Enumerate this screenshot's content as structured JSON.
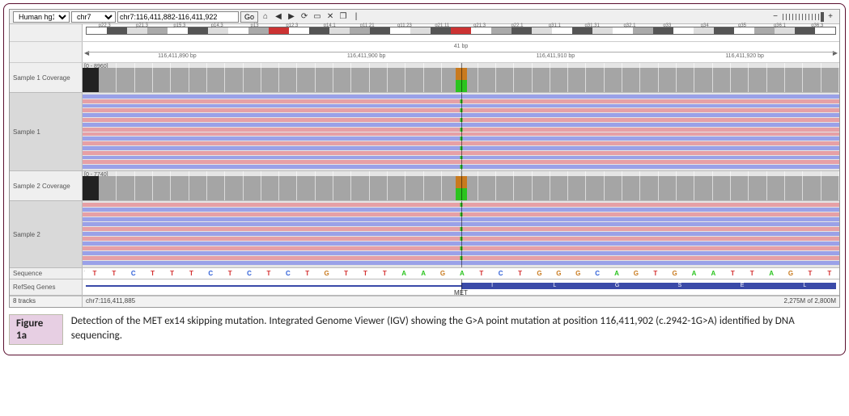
{
  "toolbar": {
    "genome": "Human hg19",
    "chrom": "chr7",
    "locus": "chr7:116,411,882-116,411,922",
    "go_label": "Go"
  },
  "icons": {
    "home": "⌂",
    "back": "◀",
    "fwd": "▶",
    "refresh": "⟳",
    "region": "▭",
    "close": "✕",
    "popout": "❐",
    "sep": "|",
    "zoom_minus": "−",
    "zoom_plus": "+"
  },
  "ideogram": {
    "labels": [
      "p22.3",
      "p21.3",
      "p15.3",
      "p14.3",
      "p13",
      "p12.3",
      "p14.1",
      "q11.21",
      "q11.23",
      "q21.11",
      "q21.3",
      "q22.1",
      "q31.1",
      "q31.31",
      "q32.1",
      "q33",
      "q34",
      "q35",
      "q36.1",
      "q36.3"
    ],
    "bands": [
      "w",
      "d",
      "l",
      "m",
      "w",
      "d",
      "l",
      "w",
      "m",
      "c",
      "w",
      "d",
      "l",
      "m",
      "d",
      "w",
      "l",
      "d",
      "c",
      "w",
      "m",
      "d",
      "l",
      "w",
      "d",
      "l",
      "w",
      "m",
      "d",
      "w",
      "l",
      "d",
      "w",
      "m",
      "l",
      "d",
      "w"
    ]
  },
  "ruler": {
    "span": "41 bp",
    "ticks": [
      "116,411,890 bp",
      "116,411,900 bp",
      "116,411,910 bp",
      "116,411,920 bp"
    ]
  },
  "tracks": {
    "sample1_cov": {
      "label": "Sample 1 Coverage",
      "range": "[0 - 8960]"
    },
    "sample1": {
      "label": "Sample 1"
    },
    "sample2_cov": {
      "label": "Sample 2 Coverage",
      "range": "[0 - 7740]"
    },
    "sample2": {
      "label": "Sample 2"
    },
    "sequence_label": "Sequence",
    "refseq_label": "RefSeq Genes"
  },
  "reads": {
    "s1": [
      "r",
      "f",
      "r",
      "f",
      "r",
      "f",
      "r",
      "f",
      "f",
      "r",
      "f",
      "r",
      "f",
      "r",
      "f",
      "r"
    ],
    "s2": [
      "f",
      "r",
      "f",
      "r",
      "r",
      "f",
      "r",
      "f",
      "r",
      "f",
      "r",
      "f",
      "r"
    ],
    "s1_snp_idx": [
      1,
      3,
      5,
      7,
      9,
      11,
      13,
      15
    ],
    "s2_snp_idx": [
      0,
      2,
      5,
      7,
      9,
      11
    ]
  },
  "sequence": [
    "T",
    "T",
    "C",
    "T",
    "T",
    "T",
    "C",
    "T",
    "C",
    "T",
    "C",
    "T",
    "G",
    "T",
    "T",
    "T",
    "A",
    "A",
    "G",
    "A",
    "T",
    "C",
    "T",
    "G",
    "G",
    "G",
    "C",
    "A",
    "G",
    "T",
    "G",
    "A",
    "A",
    "T",
    "T",
    "A",
    "G",
    "T",
    "T"
  ],
  "gene": {
    "name": "MET",
    "aa": [
      "I",
      "L",
      "G",
      "S",
      "E",
      "L"
    ]
  },
  "status": {
    "left": "8 tracks",
    "mid": "chr7:116,411,885",
    "right": "2,275M of 2,800M"
  },
  "colors": {
    "variant_ref": "#c97a1e",
    "variant_alt": "#2bc41f",
    "read_fwd": "#e6a0a6",
    "read_rev": "#9aa1e8",
    "exon": "#3a4aa8"
  },
  "caption": {
    "label": "Figure 1a",
    "text": "Detection of the MET ex14 skipping mutation. Integrated Genome Viewer (IGV) showing the G>A point mutation at position 116,411,902 (c.2942-1G>A) identified by DNA sequencing."
  }
}
